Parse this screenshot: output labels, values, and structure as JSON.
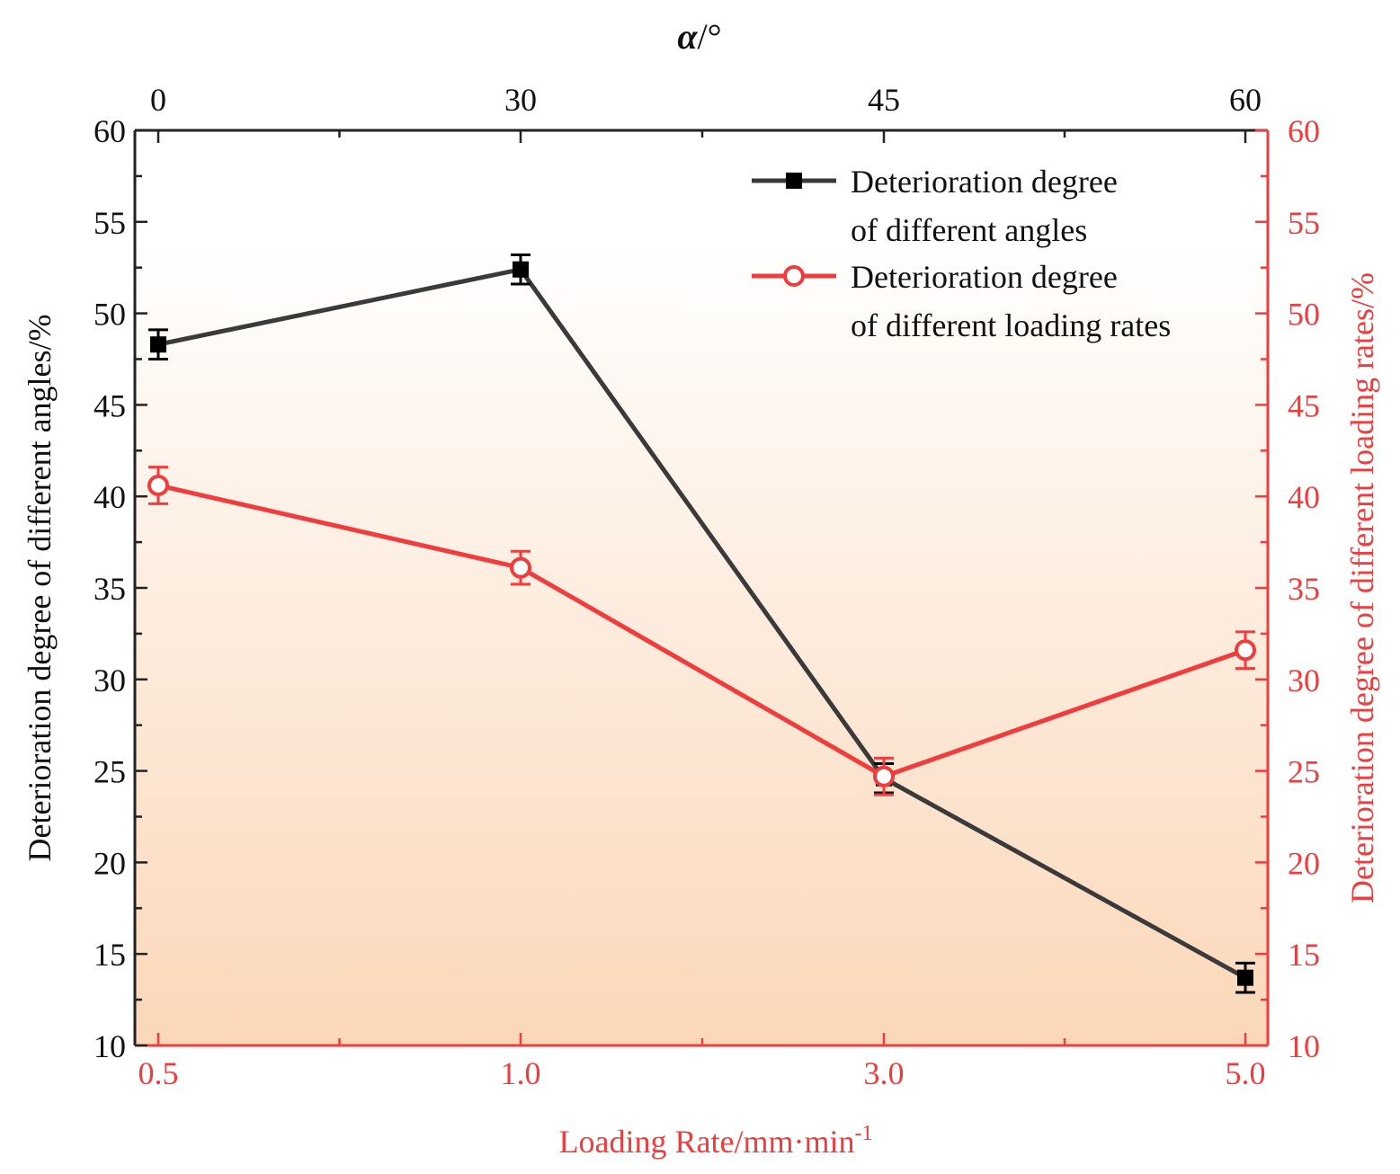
{
  "chart_data": {
    "type": "line",
    "top_axis": {
      "label_var": "α",
      "label_unit": "/°",
      "categories": [
        "0",
        "30",
        "45",
        "60"
      ]
    },
    "bottom_axis": {
      "label": "Loading Rate/mm·min",
      "label_sup": "-1",
      "categories": [
        "0.5",
        "1.0",
        "3.0",
        "5.0"
      ]
    },
    "left_axis": {
      "label": "Deterioration degree of different angles/%",
      "ylim": [
        10,
        60
      ],
      "ticks": [
        10,
        15,
        20,
        25,
        30,
        35,
        40,
        45,
        50,
        55,
        60
      ]
    },
    "right_axis": {
      "label": "Deterioration degree of different loading rates/%",
      "ylim": [
        10,
        60
      ],
      "ticks": [
        10,
        15,
        20,
        25,
        30,
        35,
        40,
        45,
        50,
        55,
        60
      ]
    },
    "series": [
      {
        "name_line1": "Deterioration degree",
        "name_line2": "of different angles",
        "axis": "top-left",
        "marker": "square",
        "color": "#3a3a3a",
        "values": [
          48.3,
          52.4,
          24.6,
          13.7
        ],
        "errors": [
          0.8,
          0.8,
          0.8,
          0.8
        ]
      },
      {
        "name_line1": "Deterioration degree",
        "name_line2": "of different loading rates",
        "axis": "bottom-right",
        "marker": "circle",
        "color": "#f03c3c",
        "values": [
          40.6,
          36.1,
          24.7,
          31.6
        ],
        "errors": [
          1.0,
          0.9,
          1.0,
          1.0
        ]
      }
    ],
    "legend": "top-right",
    "grid": false,
    "background": {
      "top": "#ffffff",
      "bottom": "#fbd7b8"
    }
  }
}
